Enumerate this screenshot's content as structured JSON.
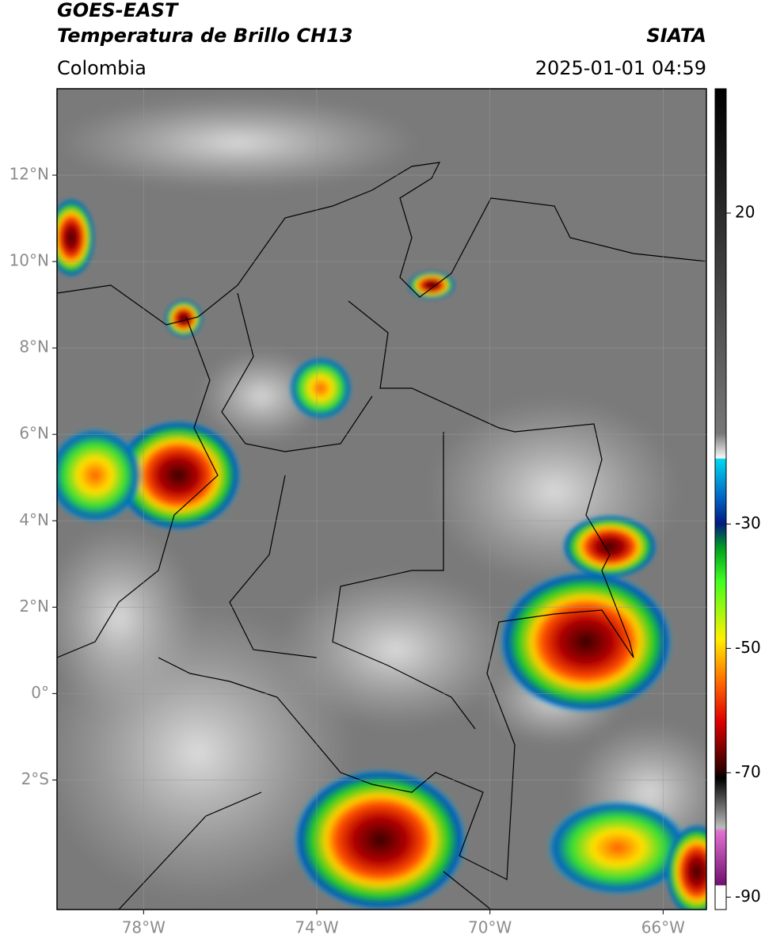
{
  "header": {
    "satellite": "GOES-EAST",
    "product": "Temperatura de Brillo CH13",
    "source": "SIATA",
    "region": "Colombia",
    "datetime": "2025-01-01 04:59"
  },
  "map": {
    "lon_range": [
      -80,
      -65
    ],
    "lat_range": [
      -5,
      14
    ],
    "lat_ticks": [
      {
        "value": 12,
        "label": "12°N"
      },
      {
        "value": 10,
        "label": "10°N"
      },
      {
        "value": 8,
        "label": "8°N"
      },
      {
        "value": 6,
        "label": "6°N"
      },
      {
        "value": 4,
        "label": "4°N"
      },
      {
        "value": 2,
        "label": "2°N"
      },
      {
        "value": 0,
        "label": "0°"
      },
      {
        "value": -2,
        "label": "2°S"
      }
    ],
    "lon_ticks": [
      {
        "value": -78,
        "label": "78°W"
      },
      {
        "value": -74,
        "label": "74°W"
      },
      {
        "value": -70,
        "label": "70°W"
      },
      {
        "value": -66,
        "label": "66°W"
      }
    ]
  },
  "colorbar": {
    "range": [
      -92,
      40
    ],
    "ticks": [
      20,
      -30,
      -50,
      -70,
      -90
    ]
  }
}
